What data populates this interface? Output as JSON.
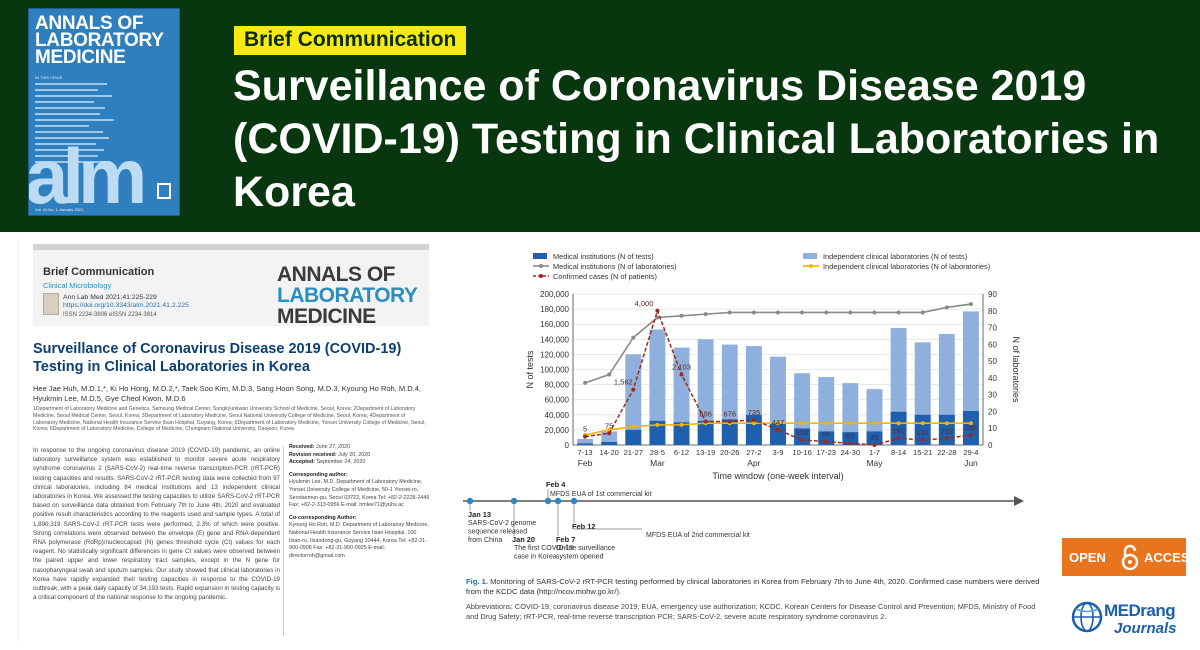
{
  "banner": {
    "tag": "Brief Communication",
    "title": "Surveillance of Coronavirus Disease 2019 (COVID-19) Testing in Clinical Laboratories in Korea",
    "cover": {
      "journal_lines": [
        "ANNALS OF",
        "LABORATORY",
        "MEDICINE"
      ],
      "in_this_issue": "IN THIS ISSUE",
      "monogram": "alm",
      "footer": "Vol. 41 No. 1 January 2021"
    }
  },
  "paper": {
    "type": "Brief Communication",
    "subject": "Clinical Microbiology",
    "citation": "Ann Lab Med 2021;41:225-229",
    "doi": "https://doi.org/10.3343/alm.2021.41.2.225",
    "issn": "ISSN 2234-3806    eISSN 2234-3814",
    "journal_lines": [
      "ANNALS OF",
      "LABORATORY",
      "MEDICINE"
    ],
    "title": "Surveillance of Coronavirus Disease 2019 (COVID-19) Testing in Clinical Laboratories in Korea",
    "authors": "Hee Jae Huh, M.D.1,*, Ki Ho Hong, M.D.2,*, Taek Soo Kim, M.D.3, Sang Hoon Song, M.D.3, Kyoung Ho Roh, M.D.4, Hyukmin Lee, M.D.5, Gye Cheol Kwon, M.D.6",
    "affiliations": "1Department of Laboratory Medicine and Genetics, Samsung Medical Center, Sungkyunkwan University School of Medicine, Seoul, Korea; 2Department of Laboratory Medicine, Seoul Medical Center, Seoul, Korea; 3Department of Laboratory Medicine, Seoul National University College of Medicine, Seoul, Korea; 4Department of Laboratory Medicine, National Health Insurance Service Ilsan Hospital, Goyang, Korea; 5Department of Laboratory Medicine, Yonsei University College of Medicine, Seoul, Korea; 6Department of Laboratory Medicine, College of Medicine, Chungnam National University, Daejeon, Korea",
    "abstract": "In response to the ongoing coronavirus disease 2019 (COVID-19) pandemic, an online laboratory surveillance system was established to monitor severe acute respiratory syndrome coronavirus 2 (SARS-CoV-2) real-time reverse transcription-PCR (rRT-PCR) testing capacities and results. SARS-CoV-2 rRT-PCR testing data were collected from 97 clinical laboratories, including 84 medical institutions and 13 independent clinical laboratories in Korea. We assessed the testing capacities to utilize SARS-CoV-2 rRT-PCR based on surveillance data obtained from February 7th to June 4th, 2020 and evaluated positive result characteristics according to the reagents used and sample types. A total of 1,890,319 SARS-CoV-2 rRT-PCR tests were performed, 2.3% of which were positive. Strong correlations were observed between the envelope (E) gene and RNA-dependent RNA polymerase (RdRp)/nucleocapsid (N) genes threshold cycle (Ct) values for each reagent. No statistically significant differences in gene Ct values were observed between the paired upper and lower respiratory tract samples, except in the N gene for nasopharyngeal swab and sputum samples. Our study showed that clinical laboratories in Korea have rapidly expanded their testing capacities in response to the COVID-19 outbreak, with a peak daily capacity of 34,193 tests. Rapid expansion in testing capacity is a critical component of the national response to the ongoing pandemic.",
    "side": {
      "received_label": "Received:",
      "received": "June 27, 2020",
      "revision_label": "Revision received:",
      "revision": "July 20, 2020",
      "accepted_label": "Accepted:",
      "accepted": "September 24, 2020",
      "corr_label": "Corresponding author:",
      "corr": "Hyukmin Lee, M.D. Department of Laboratory Medicine, Yonsei University College of Medicine, 50-1 Yonsei-ro, Seodaemun-gu, Seoul 03722, Korea Tel: +82-2-2228-2446 Fax: +82-2-313-0956 E-mail: hmlee71@yuhs.ac",
      "cocorr_label": "Co-corresponding Author:",
      "cocorr": "Kyoung Ho Roh, M.D. Department of Laboratory Medicine, National Health Insurance Service Ilsan Hospital, 100 Ilsan-ro, Ilsandong-gu, Goyang 10444, Korea Tel: +82-31-900-0906 Fax: +82-31-900-0925 E-mail: directorroh@gmail.com"
    }
  },
  "figure": {
    "caption_label": "Fig. 1.",
    "caption": "Monitoring of SARS-CoV-2 rRT-PCR testing performed by clinical laboratories in Korea from February 7th to June 4th, 2020. Confirmed case numbers were derived from the KCDC data (http://ncov.mohw.go.kr/).",
    "abbreviations": "Abbreviations: COVID-19, coronavirus disease 2019; EUA, emergency use authorization; KCDC, Korean Centers for Disease Control and Prevention; MFDS, Ministry of Food and Drug Safety; rRT-PCR, real-time reverse transcription PCR; SARS-CoV-2, severe acute respiratory syndrome coronavirus 2."
  },
  "chart_data": {
    "type": "bar",
    "xlabel": "Time window (one-week interval)",
    "ylabel": "N of tests",
    "y2label": "N of laboratories",
    "ylim": [
      0,
      200000
    ],
    "y2lim": [
      0,
      90
    ],
    "yticks": [
      "0",
      "20,000",
      "40,000",
      "60,000",
      "80,000",
      "100,000",
      "120,000",
      "140,000",
      "160,000",
      "180,000",
      "200,000"
    ],
    "y2ticks": [
      "0",
      "10",
      "20",
      "30",
      "40",
      "50",
      "60",
      "70",
      "80",
      "90"
    ],
    "categories": [
      "7-13",
      "14-20",
      "21-27",
      "28-5",
      "6-12",
      "13-19",
      "20-26",
      "27-2",
      "3-9",
      "10-16",
      "17-23",
      "24-30",
      "1-7",
      "8-14",
      "15-21",
      "22-28",
      "29-4"
    ],
    "month_labels": [
      {
        "label": "Feb",
        "index": 0
      },
      {
        "label": "Mar",
        "index": 3
      },
      {
        "label": "Apr",
        "index": 7
      },
      {
        "label": "May",
        "index": 12
      },
      {
        "label": "Jun",
        "index": 16
      }
    ],
    "series": [
      {
        "name": "Medical institutions (N of tests)",
        "axis": "left",
        "kind": "bar",
        "color": "#1f5fb0",
        "values": [
          2000,
          4000,
          20000,
          32000,
          30000,
          32000,
          34000,
          40000,
          29000,
          22000,
          18000,
          17000,
          18000,
          44000,
          40000,
          40000,
          45000
        ]
      },
      {
        "name": "Independent clinical laboratories (N of tests)",
        "axis": "left",
        "kind": "bar",
        "color": "#8fb0dc",
        "values": [
          8000,
          18000,
          120000,
          153000,
          129000,
          140000,
          133000,
          131000,
          117000,
          95000,
          90000,
          82000,
          74000,
          155000,
          136000,
          147000,
          177000
        ]
      },
      {
        "name": "Medical institutions (N of laboratories)",
        "axis": "right",
        "kind": "line",
        "color": "#8a8a8a",
        "values": [
          37,
          42,
          64,
          76,
          77,
          78,
          79,
          79,
          79,
          79,
          79,
          79,
          79,
          79,
          79,
          82,
          84
        ]
      },
      {
        "name": "Independent clinical laboratories (N of laboratories)",
        "axis": "right",
        "kind": "line",
        "color": "#f2b500",
        "values": [
          6,
          9,
          11,
          12,
          12,
          13,
          13,
          13,
          13,
          13,
          13,
          13,
          13,
          13,
          13,
          13,
          13
        ]
      },
      {
        "name": "Confirmed cases (N of patients)",
        "axis": "right",
        "kind": "dashed",
        "color": "#9e2a1e",
        "values": [
          5,
          7,
          33,
          80,
          42,
          14,
          14,
          15,
          9,
          3,
          2,
          1,
          0,
          4,
          3,
          4,
          6
        ]
      }
    ],
    "case_labels": [
      "5",
      "75",
      "1,562",
      "4,000",
      "2,103",
      "696",
      "676",
      "735",
      "447",
      "150",
      "89",
      "63",
      "45",
      "181",
      "131",
      "222",
      "285"
    ],
    "timeline": [
      {
        "date": "Jan 13",
        "text": "SARS-CoV-2 genome sequence released from China"
      },
      {
        "date": "Jan 20",
        "text": "The first COVID-19 case in Korea"
      },
      {
        "date": "Feb 4",
        "text": "MFDS EUA of 1st commercial kit"
      },
      {
        "date": "Feb 7",
        "text": "Online surveillance system opened"
      },
      {
        "date": "Feb 12",
        "text": "MFDS EUA of 2nd commercial kit"
      }
    ]
  },
  "badges": {
    "open_access": [
      "OPEN",
      "ACCESS"
    ],
    "publisher": [
      "MEDrang",
      "Journals"
    ]
  }
}
